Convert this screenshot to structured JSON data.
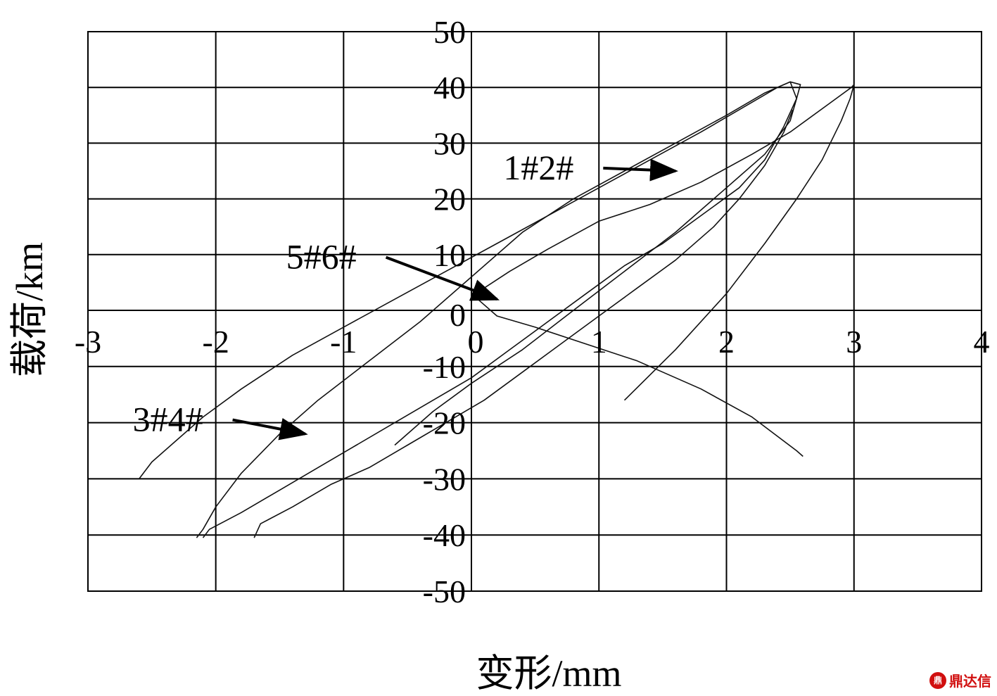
{
  "chart_data": {
    "type": "line",
    "title": "",
    "xlabel": "变形/mm",
    "ylabel": "载荷/km",
    "xlim": [
      -3,
      4
    ],
    "ylim": [
      -50,
      50
    ],
    "x_ticks": [
      -3,
      -2,
      -1,
      0,
      1,
      2,
      3,
      4
    ],
    "y_ticks": [
      50,
      40,
      30,
      20,
      10,
      0,
      -10,
      -20,
      -30,
      -40,
      -50
    ],
    "grid": true,
    "legend": "none",
    "series": [
      {
        "name": "1#2#",
        "points": [
          [
            1.2,
            -16
          ],
          [
            1.6,
            -7
          ],
          [
            2.0,
            3
          ],
          [
            2.3,
            12
          ],
          [
            2.55,
            20
          ],
          [
            2.75,
            27
          ],
          [
            2.9,
            34
          ],
          [
            2.97,
            38
          ],
          [
            3.0,
            40.5
          ],
          [
            2.98,
            40
          ],
          [
            2.8,
            37
          ],
          [
            2.5,
            32
          ],
          [
            2.2,
            28
          ],
          [
            1.8,
            23
          ],
          [
            1.4,
            19
          ],
          [
            1.0,
            16
          ],
          [
            0.6,
            11
          ],
          [
            0.3,
            7
          ],
          [
            0.1,
            4
          ],
          [
            0.05,
            2
          ],
          [
            0.2,
            -1
          ],
          [
            0.5,
            -3
          ],
          [
            0.9,
            -6
          ],
          [
            1.3,
            -9
          ],
          [
            1.8,
            -14
          ],
          [
            2.2,
            -19
          ],
          [
            2.55,
            -25
          ],
          [
            2.6,
            -26
          ]
        ]
      },
      {
        "name": "5#6#",
        "points": [
          [
            -0.6,
            -24
          ],
          [
            -0.3,
            -18
          ],
          [
            0.0,
            -13
          ],
          [
            0.4,
            -7
          ],
          [
            0.8,
            0
          ],
          [
            1.2,
            7
          ],
          [
            1.6,
            14
          ],
          [
            2.0,
            22
          ],
          [
            2.3,
            28
          ],
          [
            2.5,
            34
          ],
          [
            2.55,
            38
          ],
          [
            2.5,
            41
          ],
          [
            2.4,
            40
          ],
          [
            2.1,
            36
          ],
          [
            1.8,
            32
          ],
          [
            1.4,
            27
          ],
          [
            1.0,
            22
          ],
          [
            0.6,
            17
          ],
          [
            0.2,
            12
          ],
          [
            -0.2,
            7
          ],
          [
            -0.6,
            2
          ],
          [
            -1.0,
            -3
          ],
          [
            -1.4,
            -8
          ],
          [
            -1.8,
            -14
          ],
          [
            -2.1,
            -19
          ],
          [
            -2.3,
            -23
          ],
          [
            -2.5,
            -27
          ],
          [
            -2.6,
            -30
          ]
        ]
      },
      {
        "name": "3#4#",
        "points": [
          [
            -2.1,
            -40.5
          ],
          [
            -2.05,
            -39
          ],
          [
            -1.8,
            -36
          ],
          [
            -1.5,
            -32
          ],
          [
            -1.2,
            -28
          ],
          [
            -0.9,
            -24
          ],
          [
            -0.6,
            -20
          ],
          [
            -0.3,
            -16
          ],
          [
            0.0,
            -12
          ],
          [
            0.3,
            -7
          ],
          [
            0.6,
            -2
          ],
          [
            0.9,
            3
          ],
          [
            1.2,
            8
          ],
          [
            1.5,
            12
          ],
          [
            1.8,
            17
          ],
          [
            2.1,
            22
          ],
          [
            2.3,
            27
          ],
          [
            2.45,
            33
          ],
          [
            2.55,
            38
          ],
          [
            2.58,
            40.5
          ],
          [
            2.5,
            41
          ],
          [
            2.3,
            39
          ],
          [
            2.0,
            35
          ],
          [
            1.6,
            30
          ],
          [
            1.2,
            25
          ],
          [
            0.8,
            20
          ],
          [
            0.4,
            14
          ],
          [
            0.0,
            6
          ],
          [
            -0.4,
            -2
          ],
          [
            -0.8,
            -9
          ],
          [
            -1.2,
            -16
          ],
          [
            -1.5,
            -22
          ],
          [
            -1.8,
            -29
          ],
          [
            -2.0,
            -35
          ],
          [
            -2.1,
            -39
          ],
          [
            -2.15,
            -40.5
          ]
        ]
      },
      {
        "name": "",
        "points": [
          [
            -1.7,
            -40.5
          ],
          [
            -1.65,
            -38
          ],
          [
            -1.4,
            -35
          ],
          [
            -1.1,
            -31
          ],
          [
            -0.8,
            -28
          ],
          [
            -0.5,
            -24
          ],
          [
            -0.2,
            -20
          ],
          [
            0.1,
            -16
          ],
          [
            0.4,
            -11
          ],
          [
            0.7,
            -6
          ],
          [
            1.0,
            -1
          ],
          [
            1.3,
            4
          ],
          [
            1.6,
            9
          ],
          [
            1.9,
            15
          ],
          [
            2.1,
            20
          ],
          [
            2.3,
            26
          ],
          [
            2.45,
            32
          ],
          [
            2.52,
            36
          ]
        ]
      }
    ],
    "annotations": [
      {
        "text": "1#2#",
        "x": 0.25,
        "y": 23.5,
        "arrow_to": [
          1.6,
          25
        ]
      },
      {
        "text": "5#6#",
        "x": -1.45,
        "y": 7.5,
        "arrow_to": [
          0.2,
          2
        ]
      },
      {
        "text": "3#4#",
        "x": -2.65,
        "y": -21.5,
        "arrow_to": [
          -1.3,
          -22
        ]
      }
    ]
  },
  "watermark": {
    "logo": "鼎",
    "text": "鼎达信"
  }
}
